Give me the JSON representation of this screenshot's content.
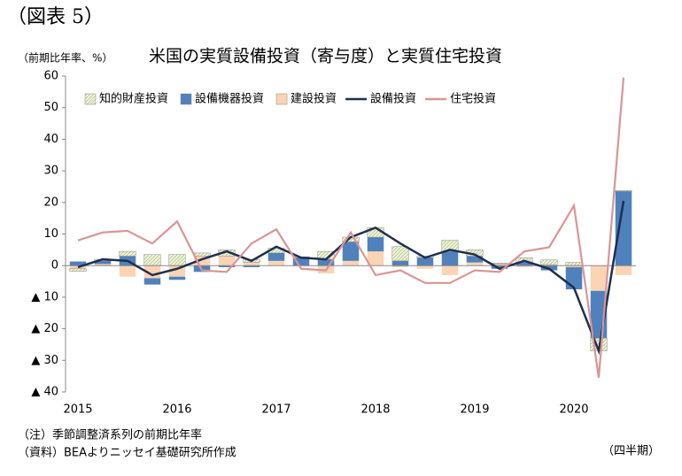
{
  "figure_label": "（図表 5）",
  "chart_data": {
    "type": "bar",
    "stacked": true,
    "title": "米国の実質設備投資（寄与度）と実質住宅投資",
    "y_label": "（前期比年率、%）",
    "x_label": "（四半期）",
    "notes": [
      "（注）季節調整済系列の前期比年率",
      "（資料）BEAよりニッセイ基礎研究所作成"
    ],
    "categories": [
      "2015",
      null,
      null,
      null,
      "2016",
      null,
      null,
      null,
      "2017",
      null,
      null,
      null,
      "2018",
      null,
      null,
      null,
      "2019",
      null,
      null,
      null,
      "2020",
      null,
      null
    ],
    "ylim": [
      -40,
      60
    ],
    "yticks": [
      {
        "value": -40,
        "label": "▲ 40"
      },
      {
        "value": -30,
        "label": "▲ 30"
      },
      {
        "value": -20,
        "label": "▲ 20"
      },
      {
        "value": -10,
        "label": "▲ 10"
      },
      0,
      10,
      20,
      30,
      40,
      50,
      60
    ],
    "legend": "top-left",
    "series": [
      {
        "name": "知的財産投資",
        "color": "#eef5d8",
        "kind": "bar",
        "values": [
          -0.8,
          0.5,
          1.5,
          3.5,
          3.5,
          1,
          2,
          1,
          1.5,
          0.3,
          2.5,
          1.5,
          3,
          4.5,
          0.5,
          3.5,
          2,
          0.3,
          1.5,
          1.5,
          1,
          -4,
          0.3
        ]
      },
      {
        "name": "設備機器投資",
        "color": "#4f81bd",
        "kind": "bar",
        "values": [
          1.3,
          1,
          3,
          -2,
          -1,
          -2,
          -0.5,
          -0.5,
          2.5,
          2.5,
          2,
          6,
          4.5,
          1.5,
          2.5,
          4.5,
          2,
          -1,
          1,
          -1.5,
          -7,
          -15,
          23.5
        ]
      },
      {
        "name": "建設投資",
        "color": "#fbd4b4",
        "kind": "bar",
        "values": [
          -1,
          0.5,
          -3.5,
          -4,
          -3.5,
          3,
          3,
          1,
          1.5,
          -0.3,
          -2.5,
          1.5,
          4.5,
          -0.5,
          -1,
          -3,
          1,
          0.5,
          -0.5,
          0.3,
          -0.5,
          -8,
          -3
        ]
      },
      {
        "name": "設備投資",
        "color": "#1f2f50",
        "kind": "line",
        "values": [
          -0.5,
          2,
          1.5,
          -3,
          -1,
          2,
          4.5,
          1.5,
          6,
          2.5,
          2,
          9,
          12,
          7,
          2.5,
          5,
          3.5,
          -1,
          1.5,
          -1,
          -7,
          -27,
          20.5
        ]
      },
      {
        "name": "住宅投資",
        "color": "#d99594",
        "kind": "line",
        "values": [
          8,
          10.5,
          11,
          7,
          14,
          -1.5,
          -2,
          7,
          11.5,
          -1,
          -1.5,
          10.5,
          -3,
          -1.5,
          -5.5,
          -5.5,
          -1.5,
          -2,
          4.5,
          5.8,
          19,
          -35.5,
          59.5
        ]
      }
    ]
  }
}
